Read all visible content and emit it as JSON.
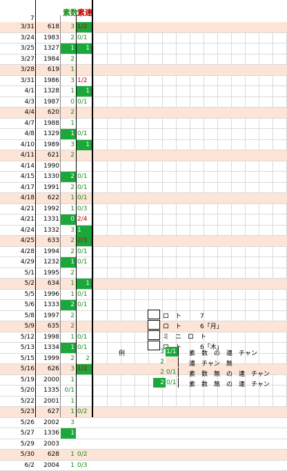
{
  "header": {
    "row_num": "7",
    "col_a": "素数",
    "col_b": "素連"
  },
  "rows": [
    {
      "date": "3/31",
      "num": "618",
      "a": "3",
      "ag": false,
      "b": "1/2",
      "bg": true,
      "br": true,
      "pink": true
    },
    {
      "date": "3/24",
      "num": "1983",
      "a": "2",
      "ag": false,
      "b": "0/1",
      "bg": false,
      "br": false,
      "pink": false
    },
    {
      "date": "3/25",
      "num": "1327",
      "a": "1",
      "ag": true,
      "b": "1",
      "bg": true,
      "br": false,
      "rt": true,
      "pink": false
    },
    {
      "date": "3/27",
      "num": "1984",
      "a": "2",
      "ag": false,
      "b": "",
      "bg": false,
      "br": false,
      "pink": false
    },
    {
      "date": "3/28",
      "num": "619",
      "a": "1",
      "ag": false,
      "b": "",
      "bg": false,
      "br": false,
      "pink": true
    },
    {
      "date": "3/31",
      "num": "1986",
      "a": "3",
      "ag": false,
      "b": "1/2",
      "bg": false,
      "br": true,
      "pink": false
    },
    {
      "date": "4/1",
      "num": "1328",
      "a": "1",
      "ag": false,
      "b": "1",
      "bg": true,
      "br": false,
      "rt": true,
      "pink": false
    },
    {
      "date": "4/3",
      "num": "1987",
      "a": "0",
      "ag": false,
      "b": "0/1",
      "bg": false,
      "br": false,
      "pink": false
    },
    {
      "date": "4/4",
      "num": "620",
      "a": "2",
      "ag": false,
      "b": "",
      "bg": false,
      "br": false,
      "pink": true
    },
    {
      "date": "4/7",
      "num": "1988",
      "a": "1",
      "ag": false,
      "b": "",
      "bg": false,
      "br": false,
      "pink": false
    },
    {
      "date": "4/8",
      "num": "1329",
      "a": "1",
      "ag": true,
      "b": "0/1",
      "bg": false,
      "br": false,
      "pink": false
    },
    {
      "date": "4/10",
      "num": "1989",
      "a": "3",
      "ag": false,
      "b": "1",
      "bg": true,
      "br": false,
      "rt": true,
      "pink": false
    },
    {
      "date": "4/11",
      "num": "621",
      "a": "2",
      "ag": false,
      "b": "",
      "bg": false,
      "br": false,
      "pink": true
    },
    {
      "date": "4/14",
      "num": "1990",
      "a": "",
      "ag": false,
      "b": "",
      "bg": false,
      "br": false,
      "pink": false
    },
    {
      "date": "4/15",
      "num": "1330",
      "a": "2",
      "ag": true,
      "b": "0/1",
      "bg": false,
      "br": false,
      "pink": false
    },
    {
      "date": "4/17",
      "num": "1991",
      "a": "2",
      "ag": false,
      "b": "0/1",
      "bg": false,
      "br": false,
      "pink": false
    },
    {
      "date": "4/18",
      "num": "622",
      "a": "1",
      "ag": false,
      "b": "0/1",
      "bg": false,
      "br": false,
      "pink": true
    },
    {
      "date": "4/21",
      "num": "1992",
      "a": "1",
      "ag": false,
      "b": "0/3",
      "bg": false,
      "br": false,
      "pink": false
    },
    {
      "date": "4/21",
      "num": "1331",
      "a": "0",
      "ag": true,
      "b": "2/4",
      "bg": false,
      "br": true,
      "pink": false
    },
    {
      "date": "4/24",
      "num": "1332",
      "a": "3",
      "ag": false,
      "b": "1",
      "bg": true,
      "br": false,
      "pink": false
    },
    {
      "date": "4/25",
      "num": "633",
      "a": "2",
      "ag": false,
      "b": "2/3",
      "bg": true,
      "br": true,
      "pink": true
    },
    {
      "date": "4/28",
      "num": "1994",
      "a": "2",
      "ag": false,
      "b": "0/1",
      "bg": false,
      "br": false,
      "pink": false
    },
    {
      "date": "4/29",
      "num": "1232",
      "a": "1",
      "ag": true,
      "b": "0/1",
      "bg": false,
      "br": false,
      "pink": false
    },
    {
      "date": "5/1",
      "num": "1995",
      "a": "2",
      "ag": false,
      "b": "",
      "bg": false,
      "br": false,
      "pink": false
    },
    {
      "date": "5/2",
      "num": "634",
      "a": "1",
      "ag": false,
      "b": "1",
      "bg": true,
      "br": false,
      "rt": true,
      "pink": true
    },
    {
      "date": "5/5",
      "num": "1996",
      "a": "1",
      "ag": false,
      "b": "0/1",
      "bg": false,
      "br": false,
      "pink": false
    },
    {
      "date": "5/6",
      "num": "1333",
      "a": "2",
      "ag": true,
      "b": "0/1",
      "bg": false,
      "br": false,
      "pink": false
    },
    {
      "date": "5/8",
      "num": "1997",
      "a": "2",
      "ag": false,
      "b": "",
      "bg": false,
      "br": false,
      "pink": false
    },
    {
      "date": "5/9",
      "num": "635",
      "a": "2",
      "ag": false,
      "b": "",
      "bg": false,
      "br": false,
      "pink": true
    },
    {
      "date": "5/12",
      "num": "1998",
      "a": "1",
      "ag": false,
      "b": "0/1",
      "bg": false,
      "br": false,
      "pink": false
    },
    {
      "date": "5/13",
      "num": "1334",
      "a": "1",
      "ag": true,
      "b": "0/1",
      "bg": false,
      "br": false,
      "pink": false
    },
    {
      "date": "5/15",
      "num": "1999",
      "a": "2",
      "ag": false,
      "b": "2",
      "bg": false,
      "br": false,
      "rt": true,
      "pink": false
    },
    {
      "date": "5/16",
      "num": "626",
      "a": "3",
      "ag": false,
      "b": "1/2",
      "bg": true,
      "br": true,
      "pink": true
    },
    {
      "date": "5/19",
      "num": "2000",
      "a": "1",
      "ag": false,
      "b": "",
      "bg": false,
      "br": false,
      "pink": false
    },
    {
      "date": "5/20",
      "num": "1335",
      "a": "0/1",
      "ag": false,
      "b": "",
      "bg": false,
      "br": false,
      "pink": false
    },
    {
      "date": "5/22",
      "num": "2001",
      "a": "1",
      "ag": false,
      "b": "",
      "bg": false,
      "br": false,
      "pink": false
    },
    {
      "date": "5/23",
      "num": "627",
      "a": "1",
      "ag": false,
      "b": "0/2",
      "bg": false,
      "br": false,
      "pink": true
    },
    {
      "date": "5/26",
      "num": "2002",
      "a": "3",
      "ag": false,
      "b": "",
      "bg": false,
      "br": false,
      "pink": false
    },
    {
      "date": "5/27",
      "num": "1336",
      "a": "1",
      "ag": true,
      "b": "",
      "bg": false,
      "br": false,
      "pink": false
    },
    {
      "date": "5/29",
      "num": "2003",
      "a": "",
      "ag": false,
      "b": "",
      "bg": false,
      "br": false,
      "pink": false
    },
    {
      "date": "5/30",
      "num": "628",
      "a": "1",
      "ag": false,
      "b": "0/2",
      "bg": false,
      "br": false,
      "pink": true
    },
    {
      "date": "6/2",
      "num": "2004",
      "a": "1",
      "ag": false,
      "b": "0/3",
      "bg": false,
      "br": false,
      "pink": false
    }
  ],
  "legend": [
    {
      "text": "ロ　ト　　　7"
    },
    {
      "text": "ロ　ト　　　6「月」"
    },
    {
      "text": "ミ　ニ　ロ　ト"
    },
    {
      "text": "ロ　ト　　　6「木」"
    }
  ],
  "example": {
    "label": "例",
    "rows": [
      {
        "a": "3",
        "ag": false,
        "b": "1/1",
        "bg": true,
        "bpink": false,
        "text": "素　数　の　連　チャン"
      },
      {
        "a": "2",
        "ag": false,
        "b": "",
        "bg": false,
        "bpink": true,
        "text": "連　チャン　無"
      },
      {
        "a": "2",
        "ag": false,
        "b": "0/1",
        "bg": false,
        "bpink": false,
        "text": "素　数　無　の　連　チャン"
      },
      {
        "a": "2",
        "ag": true,
        "b": "0/1",
        "bg": false,
        "bpink": false,
        "text": "素　数　無　の　連　チャン"
      }
    ]
  }
}
